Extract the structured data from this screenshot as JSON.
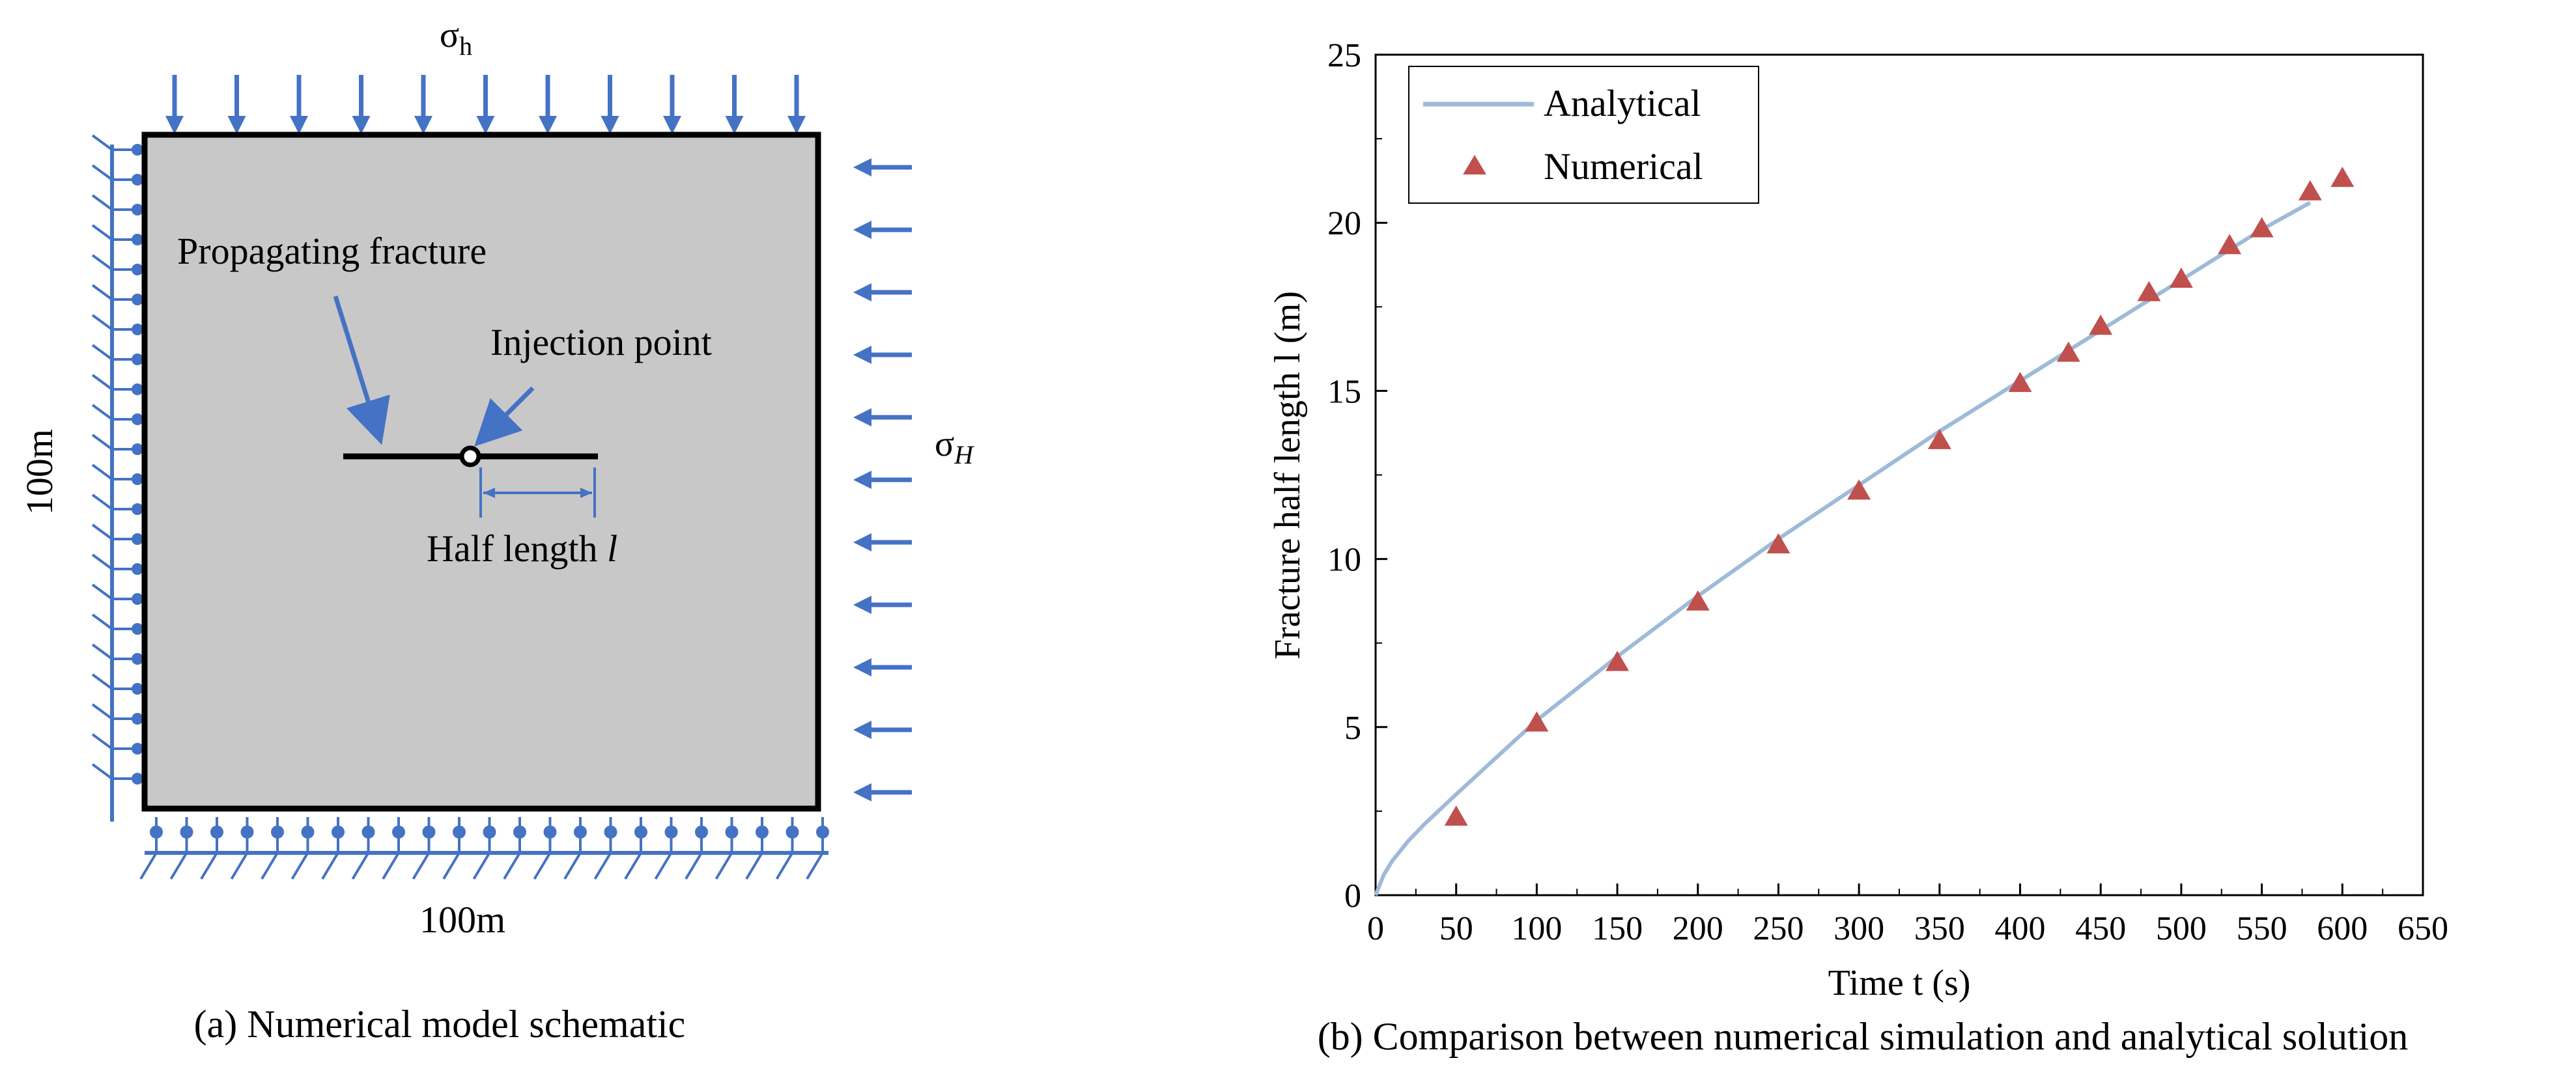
{
  "schematic": {
    "caption": "(a) Numerical model schematic",
    "top_stress": "σ",
    "top_stress_sub": "h",
    "right_stress": "σ",
    "right_stress_sub": "H",
    "left_dim": "100m",
    "bottom_dim": "100m",
    "fracture_label": "Propagating fracture",
    "injection_label": "Injection point",
    "half_length_label": "Half length ",
    "half_length_symbol": "l",
    "colors": {
      "block": "#c8c8c8",
      "arrow": "#4472c4",
      "edge": "#000000"
    }
  },
  "chart_data": {
    "type": "line+scatter",
    "caption": "(b)  Comparison between numerical simulation and analytical solution",
    "xlabel": "Time t (s)",
    "ylabel": "Fracture half length l (m)",
    "xlim": [
      0,
      650
    ],
    "ylim": [
      0,
      25
    ],
    "xticks": [
      0,
      50,
      100,
      150,
      200,
      250,
      300,
      350,
      400,
      450,
      500,
      550,
      600,
      650
    ],
    "yticks": [
      0,
      5,
      10,
      15,
      20,
      25
    ],
    "grid": false,
    "legend_position": "top-left",
    "series": [
      {
        "name": "Analytical",
        "kind": "line",
        "color": "#9dbad9",
        "x": [
          0,
          5,
          10,
          20,
          30,
          50,
          75,
          100,
          150,
          200,
          250,
          300,
          350,
          400,
          450,
          500,
          550,
          580
        ],
        "y": [
          0,
          0.6,
          1.0,
          1.6,
          2.1,
          3.0,
          4.1,
          5.2,
          7.1,
          8.9,
          10.6,
          12.2,
          13.8,
          15.3,
          16.8,
          18.3,
          19.8,
          20.6
        ]
      },
      {
        "name": "Numerical",
        "kind": "scatter",
        "marker": "triangle",
        "color": "#c0504d",
        "x": [
          50,
          100,
          150,
          200,
          250,
          300,
          350,
          400,
          430,
          450,
          480,
          500,
          530,
          550,
          580,
          600
        ],
        "y": [
          2.3,
          5.1,
          6.9,
          8.7,
          10.4,
          12.0,
          13.5,
          15.2,
          16.1,
          16.9,
          17.9,
          18.3,
          19.3,
          19.8,
          20.9,
          21.3
        ]
      }
    ]
  }
}
